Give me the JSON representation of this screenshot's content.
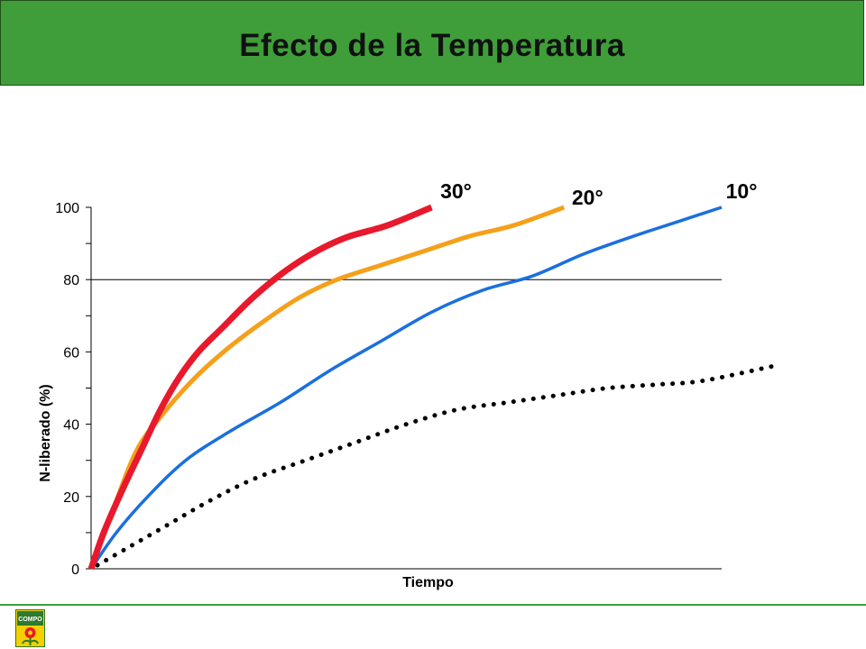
{
  "title": "Efecto de la Temperatura",
  "colors": {
    "banner": "#3f9e3a",
    "footer_line": "#3f9e3a"
  },
  "logo": {
    "text": "COMPO",
    "icon": "compo-logo-icon"
  },
  "chart_data": {
    "type": "line",
    "xlabel": "Tiempo",
    "ylabel": "N-liberado (%)",
    "ylim": [
      0,
      100
    ],
    "xlim": [
      0,
      1
    ],
    "yticks": [
      "0",
      "20",
      "40",
      "60",
      "80",
      "100"
    ],
    "gridlines_y": [
      80
    ],
    "legend": "none",
    "series": [
      {
        "name": "30°",
        "color": "#e8192c",
        "style": "thick",
        "x": [
          0,
          0.02,
          0.05,
          0.08,
          0.11,
          0.14,
          0.17,
          0.21,
          0.25,
          0.29,
          0.33,
          0.37,
          0.41,
          0.47,
          0.54
        ],
        "y": [
          0,
          10,
          22,
          33,
          44,
          53,
          60,
          67,
          74,
          80,
          85,
          89,
          92,
          95,
          100
        ]
      },
      {
        "name": "20°",
        "color": "#f5a01a",
        "style": "medium",
        "x": [
          0,
          0.03,
          0.07,
          0.11,
          0.16,
          0.21,
          0.27,
          0.33,
          0.39,
          0.46,
          0.53,
          0.6,
          0.67,
          0.75
        ],
        "y": [
          0,
          14,
          32,
          42,
          52,
          60,
          68,
          75,
          80,
          84,
          88,
          92,
          95,
          100
        ]
      },
      {
        "name": "10°",
        "color": "#1a6fe0",
        "style": "thin",
        "x": [
          0,
          0.04,
          0.09,
          0.15,
          0.22,
          0.3,
          0.38,
          0.46,
          0.54,
          0.62,
          0.7,
          0.78,
          0.86,
          0.93,
          1.0
        ],
        "y": [
          0,
          10,
          20,
          30,
          38,
          46,
          55,
          63,
          71,
          77,
          81,
          87,
          92,
          96,
          100
        ]
      },
      {
        "name": "",
        "color": "#000000",
        "style": "dotted",
        "x": [
          0.01,
          0.06,
          0.12,
          0.19,
          0.26,
          0.34,
          0.42,
          0.5,
          0.58,
          0.66,
          0.74,
          0.82,
          0.9,
          0.97,
          1.08
        ],
        "y": [
          1,
          6,
          12,
          19,
          25,
          30,
          35,
          40,
          44,
          46,
          48,
          50,
          51,
          52,
          56
        ]
      }
    ],
    "annotations": [
      {
        "text": "30°",
        "series": 0
      },
      {
        "text": "20°",
        "series": 1
      },
      {
        "text": "10°",
        "series": 2
      }
    ]
  }
}
